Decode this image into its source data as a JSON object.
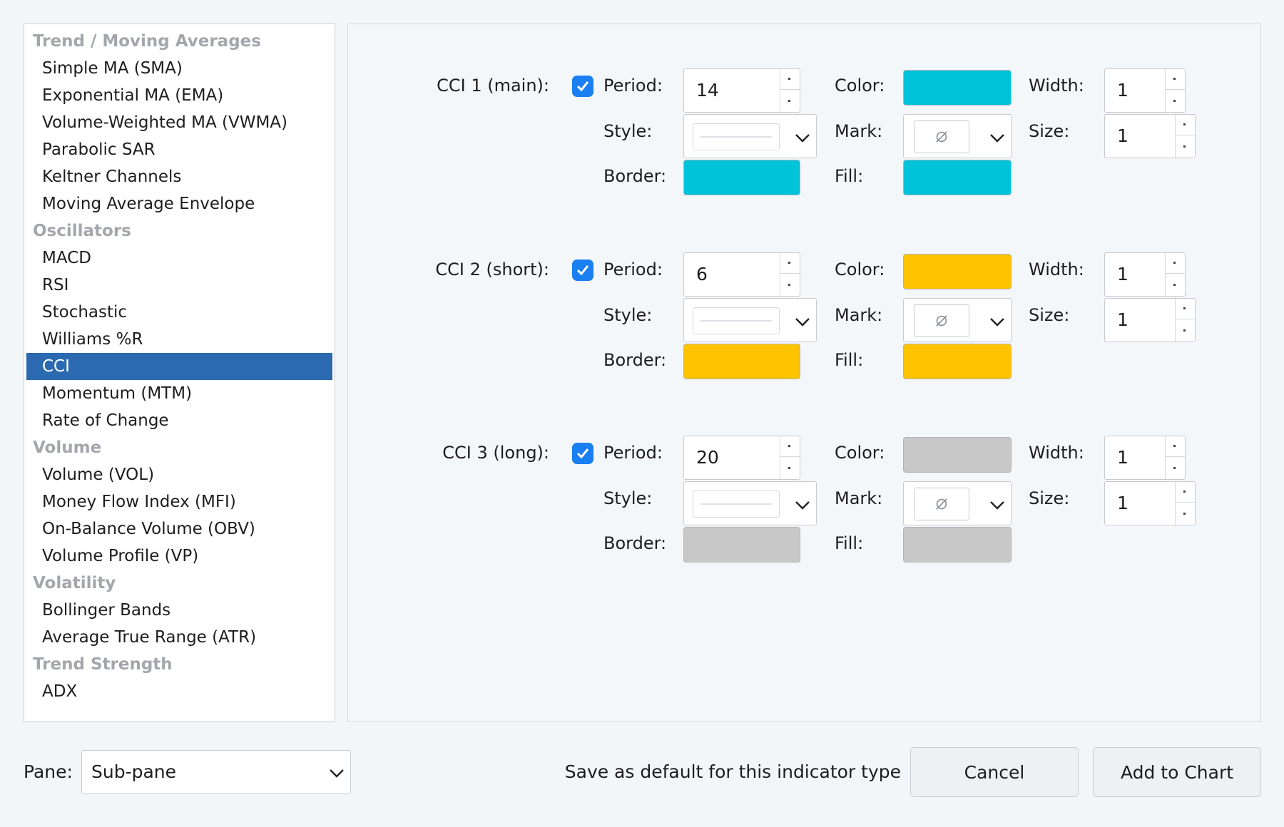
{
  "indicator_list": {
    "rows": [
      {
        "kind": "group",
        "label": "Trend / Moving Averages"
      },
      {
        "kind": "item",
        "label": "Simple MA (SMA)"
      },
      {
        "kind": "item",
        "label": "Exponential MA (EMA)"
      },
      {
        "kind": "item",
        "label": "Volume-Weighted MA (VWMA)"
      },
      {
        "kind": "item",
        "label": "Parabolic SAR"
      },
      {
        "kind": "item",
        "label": "Keltner Channels"
      },
      {
        "kind": "item",
        "label": "Moving Average Envelope"
      },
      {
        "kind": "group",
        "label": "Oscillators"
      },
      {
        "kind": "item",
        "label": "MACD"
      },
      {
        "kind": "item",
        "label": "RSI"
      },
      {
        "kind": "item",
        "label": "Stochastic"
      },
      {
        "kind": "item",
        "label": "Williams %R"
      },
      {
        "kind": "item",
        "label": "CCI",
        "selected": true
      },
      {
        "kind": "item",
        "label": "Momentum (MTM)"
      },
      {
        "kind": "item",
        "label": "Rate of Change"
      },
      {
        "kind": "group",
        "label": "Volume"
      },
      {
        "kind": "item",
        "label": "Volume (VOL)"
      },
      {
        "kind": "item",
        "label": "Money Flow Index (MFI)"
      },
      {
        "kind": "item",
        "label": "On-Balance Volume (OBV)"
      },
      {
        "kind": "item",
        "label": "Volume Profile (VP)"
      },
      {
        "kind": "group",
        "label": "Volatility"
      },
      {
        "kind": "item",
        "label": "Bollinger Bands"
      },
      {
        "kind": "item",
        "label": "Average True Range (ATR)"
      },
      {
        "kind": "group",
        "label": "Trend Strength"
      },
      {
        "kind": "item",
        "label": "ADX"
      }
    ]
  },
  "field_labels": {
    "period": "Period:",
    "color": "Color:",
    "width": "Width:",
    "style": "Style:",
    "mark": "Mark:",
    "size": "Size:",
    "border": "Border:",
    "fill": "Fill:"
  },
  "series": [
    {
      "title": "CCI 1 (main):",
      "enabled": true,
      "period": "14",
      "width": "1",
      "size": "1",
      "color": "#00c3da",
      "border_color": "#00c3da",
      "fill_color": "#00c3da"
    },
    {
      "title": "CCI 2 (short):",
      "enabled": true,
      "period": "6",
      "width": "1",
      "size": "1",
      "color": "#ffc400",
      "border_color": "#ffc400",
      "fill_color": "#ffc400"
    },
    {
      "title": "CCI 3 (long):",
      "enabled": true,
      "period": "20",
      "width": "1",
      "size": "1",
      "color": "#c8c8c8",
      "border_color": "#c8c8c8",
      "fill_color": "#c8c8c8"
    }
  ],
  "icons": {
    "checkbox": "checkmark-icon",
    "mark_none": "empty-set-icon",
    "dropdown": "chevron-down-icon"
  },
  "footer": {
    "pane_label": "Pane:",
    "pane_value": "Sub-pane",
    "save_default_label": "Save as default for this indicator type",
    "cancel_label": "Cancel",
    "add_label": "Add to Chart"
  },
  "colors": {
    "accent": "#1a7ff0",
    "selection": "#2b6ab1"
  }
}
